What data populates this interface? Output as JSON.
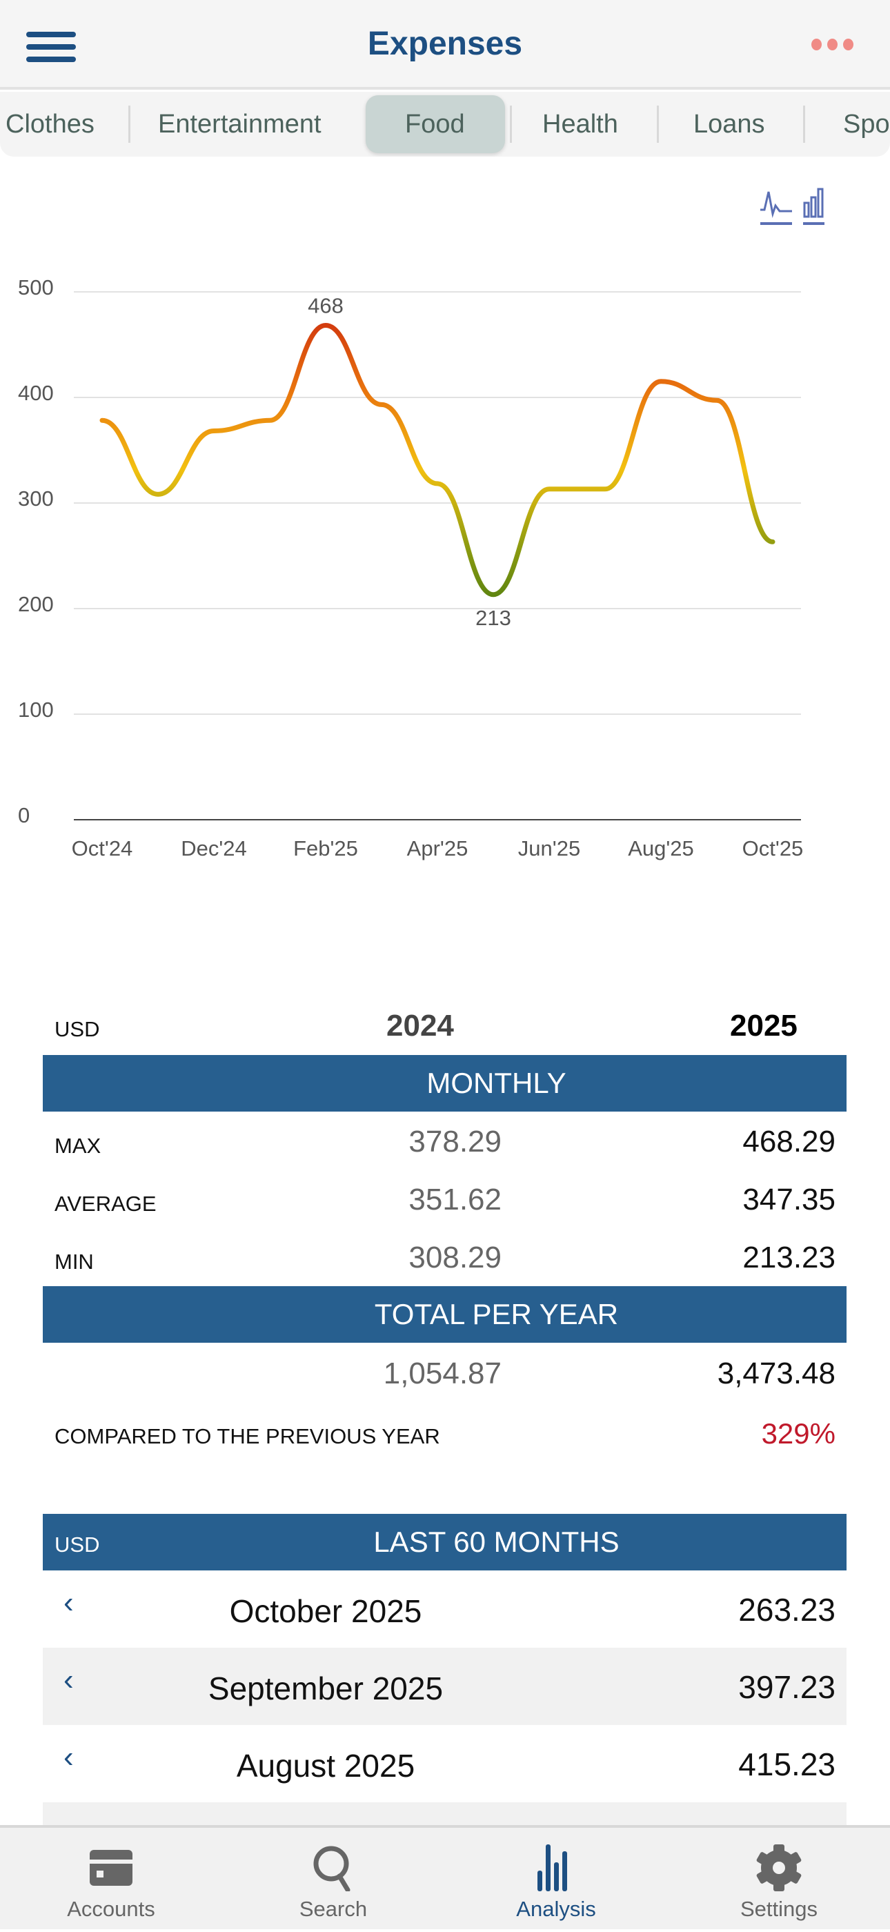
{
  "header": {
    "title": "Expenses",
    "menu_icon": "hamburger-icon",
    "more_icon": "more-dots-icon"
  },
  "tabs": [
    {
      "label": "Clothes"
    },
    {
      "label": "Entertainment"
    },
    {
      "label": "Food",
      "selected": true
    },
    {
      "label": "Health"
    },
    {
      "label": "Loans"
    },
    {
      "label": "Spo"
    }
  ],
  "chart_toggle": {
    "line_icon": "line-chart-icon",
    "bar_icon": "bar-chart-icon"
  },
  "colors": {
    "accent": "#1d4f82",
    "bar": "#275f8f",
    "negative": "#c0192b",
    "high": "#c8200f",
    "mid": "#f0c010",
    "low": "#5a8a10"
  },
  "chart_data": {
    "type": "line",
    "x": [
      "Oct'24",
      "Nov'24",
      "Dec'24",
      "Jan'25",
      "Feb'25",
      "Mar'25",
      "Apr'25",
      "May'25",
      "Jun'25",
      "Jul'25",
      "Aug'25",
      "Sep'25",
      "Oct'25"
    ],
    "values": [
      378.29,
      308.29,
      368.29,
      378.23,
      468.29,
      393.23,
      318.35,
      213.23,
      313.23,
      313.23,
      415.23,
      397.23,
      263.23
    ],
    "xtick_labels": [
      "Oct'24",
      "Dec'24",
      "Feb'25",
      "Apr'25",
      "Jun'25",
      "Aug'25",
      "Oct'25"
    ],
    "yticks": [
      "0",
      "100",
      "200",
      "300",
      "400",
      "500"
    ],
    "ylim": [
      0,
      500
    ],
    "annotations": {
      "max": "468",
      "min": "213"
    },
    "grid": true
  },
  "summary": {
    "currency": "USD",
    "year1": "2024",
    "year2": "2025",
    "monthly_label": "MONTHLY",
    "rows": [
      {
        "label": "MAX",
        "v1": "378.29",
        "v2": "468.29"
      },
      {
        "label": "AVERAGE",
        "v1": "351.62",
        "v2": "347.35"
      },
      {
        "label": "MIN",
        "v1": "308.29",
        "v2": "213.23"
      }
    ],
    "total_label": "TOTAL PER YEAR",
    "total1": "1,054.87",
    "total2": "3,473.48",
    "compared_label": "COMPARED TO THE PREVIOUS YEAR",
    "compared_value": "329%"
  },
  "months": {
    "currency": "USD",
    "title": "LAST 60 MONTHS",
    "items": [
      {
        "month": "October 2025",
        "value": "263.23"
      },
      {
        "month": "September 2025",
        "value": "397.23"
      },
      {
        "month": "August 2025",
        "value": "415.23"
      }
    ]
  },
  "tabbar": [
    {
      "label": "Accounts"
    },
    {
      "label": "Search"
    },
    {
      "label": "Analysis",
      "active": true
    },
    {
      "label": "Settings"
    }
  ]
}
